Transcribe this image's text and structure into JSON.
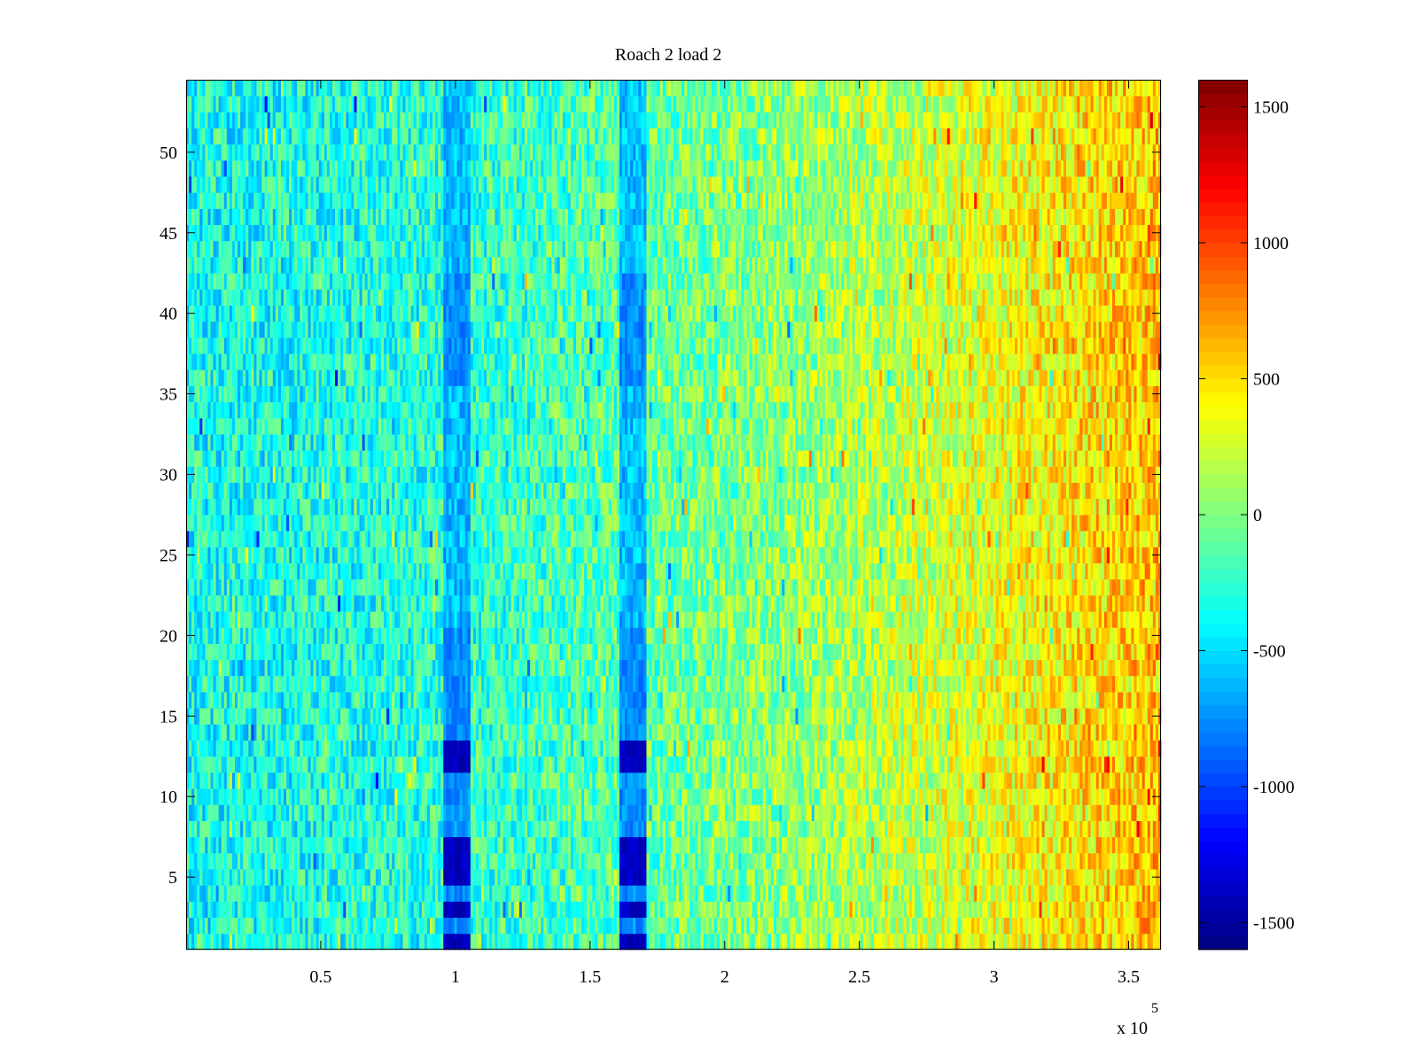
{
  "chart_data": {
    "type": "heatmap",
    "title": "Roach 2 load 2",
    "xlabel": "",
    "ylabel": "",
    "x_range": [
      0,
      362000
    ],
    "y_range": [
      0.5,
      54.5
    ],
    "rows": 54,
    "xticks": [
      50000,
      100000,
      150000,
      200000,
      250000,
      300000,
      350000
    ],
    "xtick_labels": [
      "0.5",
      "1",
      "1.5",
      "2",
      "2.5",
      "3",
      "3.5"
    ],
    "x_exponent_base": "x 10",
    "x_exponent_power": "5",
    "yticks": [
      5,
      10,
      15,
      20,
      25,
      30,
      35,
      40,
      45,
      50
    ],
    "ytick_labels": [
      "5",
      "10",
      "15",
      "20",
      "25",
      "30",
      "35",
      "40",
      "45",
      "50"
    ],
    "clim": [
      -1600,
      1600
    ],
    "colorbar_ticks": [
      1500,
      1000,
      500,
      0,
      -500,
      -1000,
      -1500
    ],
    "colorbar_tick_labels": [
      "1500",
      "1000",
      "500",
      "0",
      "-500",
      "-1000",
      "-1500"
    ],
    "colormap": "jet",
    "grid": false,
    "features": {
      "baseline_left": -350,
      "baseline_right": 600,
      "band_1_center": 101000,
      "band_2_center": 166000,
      "band_width": 10000,
      "band_strong_rows": [
        1,
        3,
        5,
        6,
        7,
        12,
        13
      ],
      "band_values": {
        "weak": -600,
        "medium": -900,
        "strong": -1500
      }
    }
  },
  "colors": {
    "background": "#ffffff",
    "axis": "#000000"
  }
}
